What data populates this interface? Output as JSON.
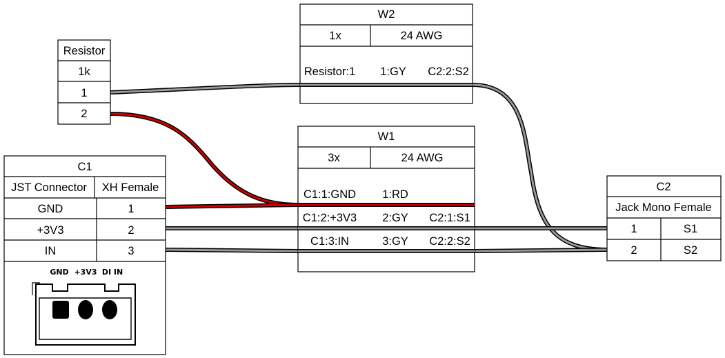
{
  "colors": {
    "red": "#cc0000",
    "grey": "#999999"
  },
  "resistor": {
    "title": "Resistor",
    "value": "1k",
    "pins": [
      "1",
      "2"
    ]
  },
  "c1": {
    "title": "C1",
    "type": "JST Connector",
    "subtype": "XH Female",
    "pins": [
      {
        "label": "GND",
        "num": "1"
      },
      {
        "label": "+3V3",
        "num": "2"
      },
      {
        "label": "IN",
        "num": "3"
      }
    ],
    "image_labels": [
      "GND",
      "+3V3",
      "DI IN"
    ]
  },
  "w2": {
    "title": "W2",
    "count": "1x",
    "gauge": "24 AWG",
    "rows": [
      {
        "left": "Resistor:1",
        "mid": "1:GY",
        "right": "C2:2:S2"
      }
    ]
  },
  "w1": {
    "title": "W1",
    "count": "3x",
    "gauge": "24 AWG",
    "rows": [
      {
        "left": "C1:1:GND",
        "mid": "1:RD",
        "right": ""
      },
      {
        "left": "C1:2:+3V3",
        "mid": "2:GY",
        "right": "C2:1:S1"
      },
      {
        "left": "C1:3:IN",
        "mid": "3:GY",
        "right": "C2:2:S2"
      }
    ]
  },
  "c2": {
    "title": "C2",
    "type": "Jack Mono Female",
    "pins": [
      {
        "num": "1",
        "label": "S1"
      },
      {
        "num": "2",
        "label": "S2"
      }
    ]
  }
}
